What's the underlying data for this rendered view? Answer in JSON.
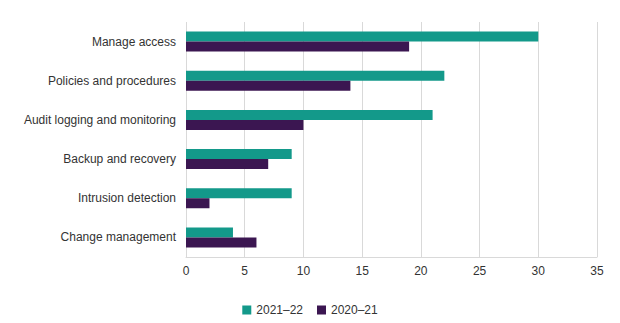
{
  "chart_data": {
    "type": "bar",
    "orientation": "horizontal",
    "categories": [
      "Manage access",
      "Policies and procedures",
      "Audit logging and monitoring",
      "Backup and recovery",
      "Intrusion detection",
      "Change management"
    ],
    "series": [
      {
        "name": "2021–22",
        "color": "#13998a",
        "values": [
          30,
          22,
          21,
          9,
          9,
          4
        ]
      },
      {
        "name": "2020–21",
        "color": "#3b1651",
        "values": [
          19,
          14,
          10,
          7,
          2,
          6
        ]
      }
    ],
    "xlim": [
      0,
      35
    ],
    "xticks": [
      0,
      5,
      10,
      15,
      20,
      25,
      30,
      35
    ],
    "grid": true,
    "legend": "bottom"
  }
}
